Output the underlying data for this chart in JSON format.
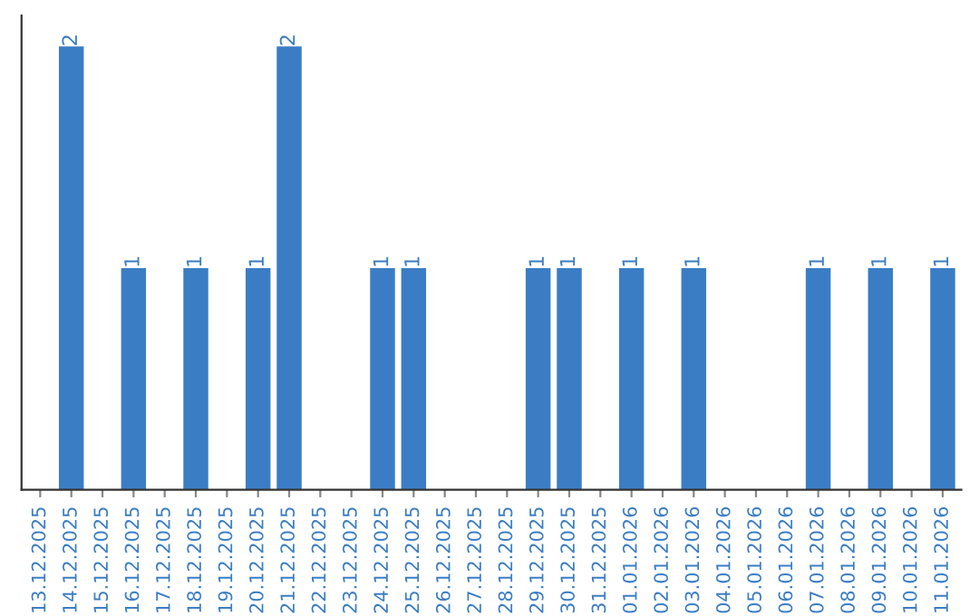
{
  "chart_data": {
    "type": "bar",
    "categories": [
      "13.12.2025",
      "14.12.2025",
      "15.12.2025",
      "16.12.2025",
      "17.12.2025",
      "18.12.2025",
      "19.12.2025",
      "20.12.2025",
      "21.12.2025",
      "22.12.2025",
      "23.12.2025",
      "24.12.2025",
      "25.12.2025",
      "26.12.2025",
      "27.12.2025",
      "28.12.2025",
      "29.12.2025",
      "30.12.2025",
      "31.12.2025",
      "01.01.2026",
      "02.01.2026",
      "03.01.2026",
      "04.01.2026",
      "05.01.2026",
      "06.01.2026",
      "07.01.2026",
      "08.01.2026",
      "09.01.2026",
      "10.01.2026",
      "11.01.2026"
    ],
    "values": [
      0,
      2,
      0,
      1,
      0,
      1,
      0,
      1,
      2,
      0,
      0,
      1,
      1,
      0,
      0,
      0,
      1,
      1,
      0,
      1,
      0,
      1,
      0,
      0,
      0,
      1,
      0,
      1,
      0,
      1
    ],
    "value_labels": [
      null,
      "2",
      null,
      "1",
      null,
      "1",
      null,
      "1",
      "2",
      null,
      null,
      "1",
      "1",
      null,
      null,
      null,
      "1",
      "1",
      null,
      "1",
      null,
      "1",
      null,
      null,
      null,
      "1",
      null,
      "1",
      null,
      "1"
    ],
    "color": "#3b7dc4",
    "grid": false,
    "legend": false
  }
}
